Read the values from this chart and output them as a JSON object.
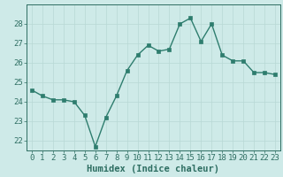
{
  "x": [
    0,
    1,
    2,
    3,
    4,
    5,
    6,
    7,
    8,
    9,
    10,
    11,
    12,
    13,
    14,
    15,
    16,
    17,
    18,
    19,
    20,
    21,
    22,
    23
  ],
  "y": [
    24.6,
    24.3,
    24.1,
    24.1,
    24.0,
    23.3,
    21.7,
    23.2,
    24.3,
    25.6,
    26.4,
    26.9,
    26.6,
    26.7,
    28.0,
    28.3,
    27.1,
    28.0,
    26.4,
    26.1,
    26.1,
    25.5,
    25.5,
    25.4
  ],
  "line_color": "#2e7d6e",
  "marker": "s",
  "marker_size": 2.5,
  "bg_color": "#ceeae8",
  "grid_color": "#b8d8d5",
  "xlabel": "Humidex (Indice chaleur)",
  "ylim": [
    21.5,
    29.0
  ],
  "xlim": [
    -0.5,
    23.5
  ],
  "yticks": [
    22,
    23,
    24,
    25,
    26,
    27,
    28
  ],
  "xticks": [
    0,
    1,
    2,
    3,
    4,
    5,
    6,
    7,
    8,
    9,
    10,
    11,
    12,
    13,
    14,
    15,
    16,
    17,
    18,
    19,
    20,
    21,
    22,
    23
  ],
  "tick_color": "#2e6e62",
  "label_fontsize": 6.5,
  "xlabel_fontsize": 7.5,
  "linewidth": 1.0,
  "grid_linewidth": 0.5,
  "spine_color": "#2e6e62"
}
